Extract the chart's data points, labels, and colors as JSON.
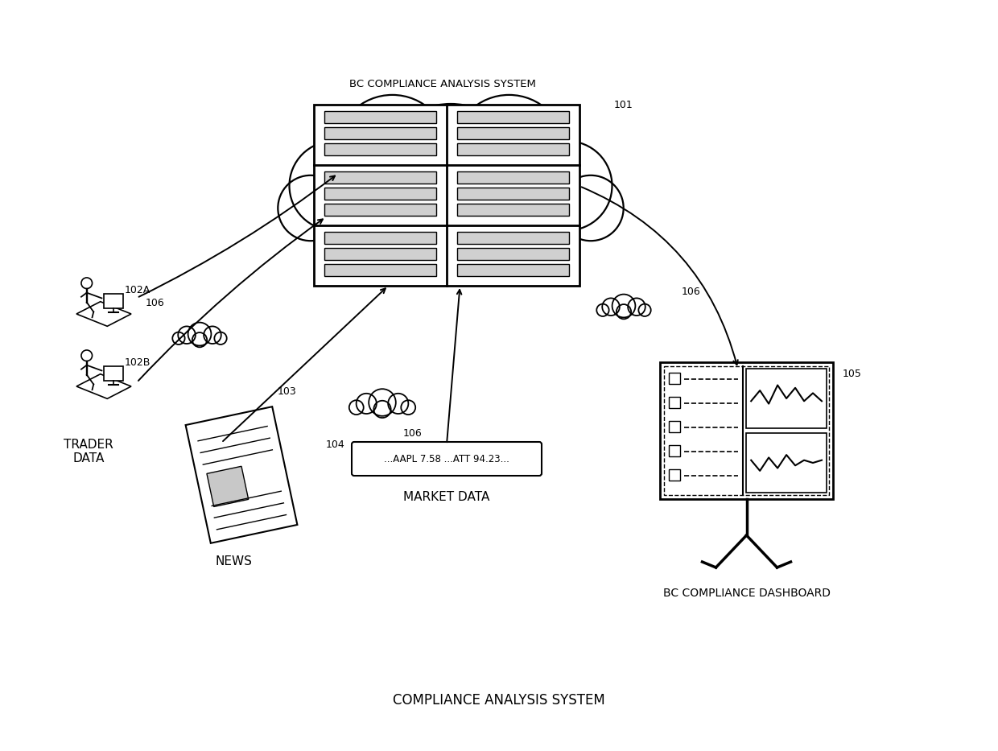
{
  "bg_color": "#ffffff",
  "title": "COMPLIANCE ANALYSIS SYSTEM",
  "title_fontsize": 12,
  "cloud_label": "BC COMPLIANCE ANALYSIS SYSTEM",
  "cloud_label_fontsize": 9,
  "cloud_ref": "101",
  "trader_label": "TRADER\nDATA",
  "trader_ref_a": "102A",
  "trader_ref_b": "102B",
  "news_label": "NEWS",
  "news_ref": "103",
  "market_label": "MARKET DATA",
  "market_ref": "104",
  "market_text": "...AAPL 7.58 ...ATT 94.23...",
  "dashboard_label": "BC COMPLIANCE DASHBOARD",
  "dashboard_ref": "105",
  "connection_label": "106",
  "line_color": "#000000",
  "text_color": "#000000"
}
